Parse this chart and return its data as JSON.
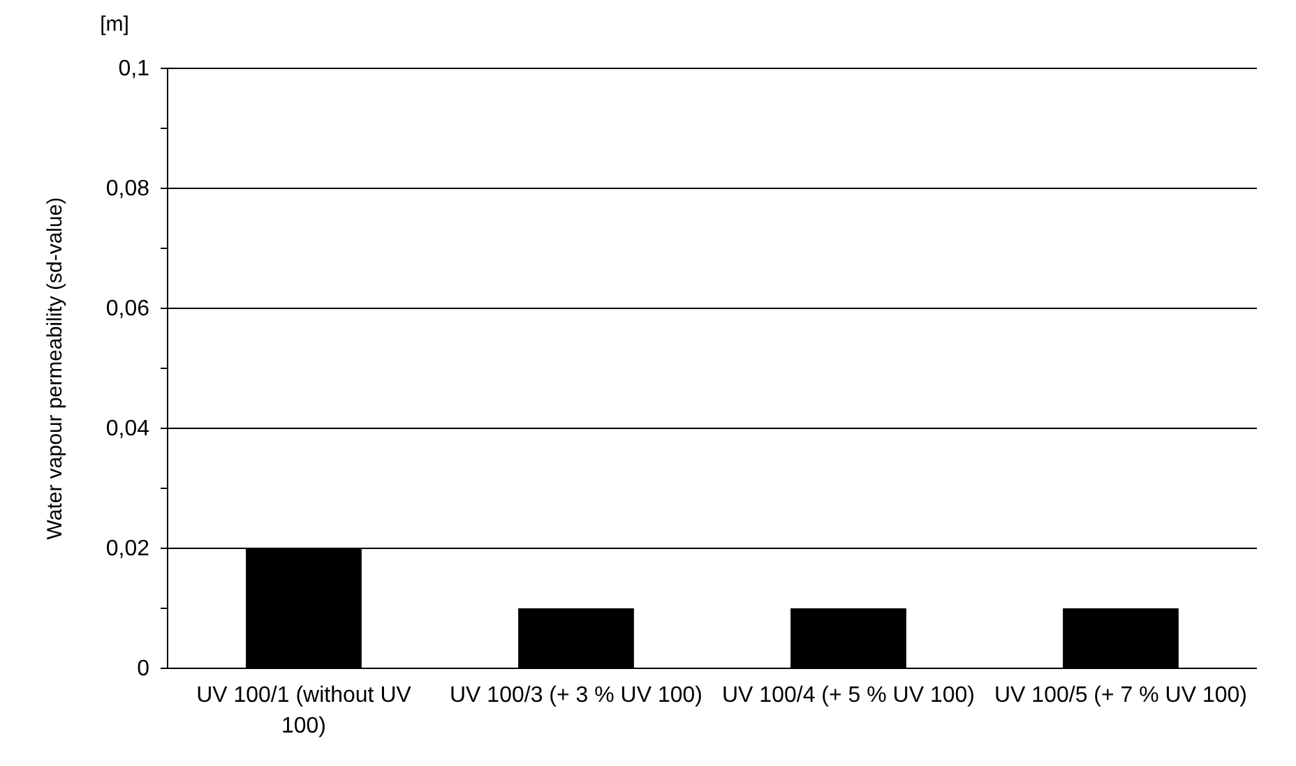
{
  "chart_data": {
    "type": "bar",
    "ylabel": "Water vapour permeability (sd-value)",
    "annotations": [
      "[m]"
    ],
    "categories": [
      "UV 100/1 (without UV 100)",
      "UV 100/3 (+ 3 % UV 100)",
      "UV 100/4 (+ 5 % UV 100)",
      "UV 100/5 (+ 7 % UV 100)"
    ],
    "values": [
      0.02,
      0.01,
      0.01,
      0.01
    ],
    "color": "#000000",
    "ylim": [
      0,
      0.1
    ],
    "yticks": [
      {
        "value": 0,
        "label": "0"
      },
      {
        "value": 0.01,
        "label": null
      },
      {
        "value": 0.02,
        "label": "0,02"
      },
      {
        "value": 0.03,
        "label": null
      },
      {
        "value": 0.04,
        "label": "0,04"
      },
      {
        "value": 0.05,
        "label": null
      },
      {
        "value": 0.06,
        "label": "0,06"
      },
      {
        "value": 0.07,
        "label": null
      },
      {
        "value": 0.08,
        "label": "0,08"
      },
      {
        "value": 0.09,
        "label": null
      },
      {
        "value": 0.1,
        "label": "0,1"
      }
    ],
    "grid": "y"
  }
}
